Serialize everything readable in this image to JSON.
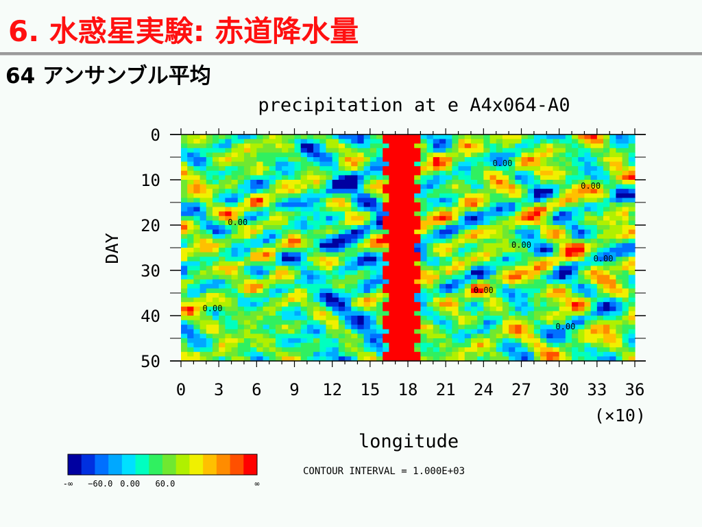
{
  "slide": {
    "title": "6. 水惑星実験: 赤道降水量",
    "subtitle": "64 アンサンブル平均"
  },
  "chart_data": {
    "type": "heatmap",
    "title": "precipitation at e A4x064-A0",
    "xlabel": "longitude",
    "x_multiplier_label": "(×10)",
    "ylabel": "DAY",
    "xlim": [
      0,
      36
    ],
    "ylim": [
      0,
      50
    ],
    "y_inverted": true,
    "x_ticks": [
      "0",
      "3",
      "6",
      "9",
      "12",
      "15",
      "18",
      "21",
      "24",
      "27",
      "30",
      "33",
      "36"
    ],
    "y_ticks": [
      "0",
      "10",
      "20",
      "30",
      "40",
      "50"
    ],
    "contour_labels": [
      {
        "text": "0.00",
        "x": 25.5,
        "y": 7
      },
      {
        "text": "0.00",
        "x": 32.5,
        "y": 12
      },
      {
        "text": "0.00",
        "x": 4.5,
        "y": 20
      },
      {
        "text": "0.00",
        "x": 27,
        "y": 25
      },
      {
        "text": "0.00",
        "x": 33.5,
        "y": 28
      },
      {
        "text": "0.00",
        "x": 24,
        "y": 35
      },
      {
        "text": "0.00",
        "x": 2.5,
        "y": 39
      },
      {
        "text": "0.00",
        "x": 30.5,
        "y": 43
      }
    ],
    "colorbar": {
      "colors": [
        "#0000a0",
        "#0030e0",
        "#0070ff",
        "#00a8ff",
        "#00e0ff",
        "#00ffc0",
        "#30f060",
        "#70e830",
        "#b0f000",
        "#f0f000",
        "#ffc000",
        "#ff8c00",
        "#ff5000",
        "#ff0000"
      ],
      "labels": [
        "-∞",
        "−60.0",
        "0.00",
        "60.0",
        "∞"
      ]
    },
    "contour_interval_text": "CONTOUR INTERVAL = 1.000E+03",
    "field": {
      "min": -100,
      "max": 100,
      "band_center_x": 17.5,
      "band_halfwidth": 1.3,
      "band_value": 100
    }
  }
}
